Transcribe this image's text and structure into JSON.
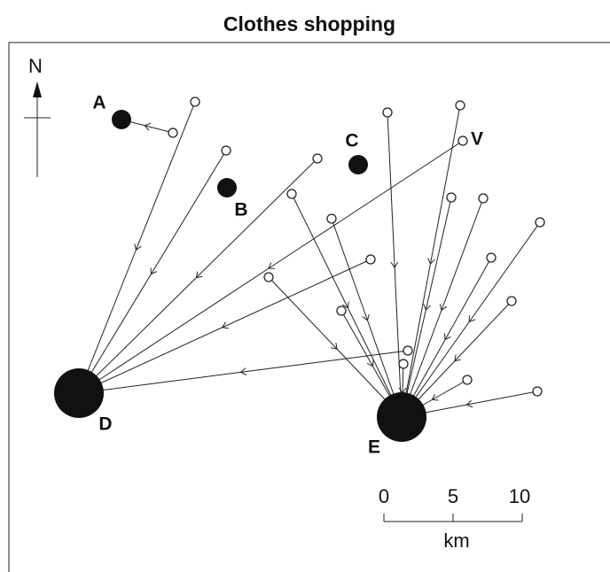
{
  "title": "Clothes shopping",
  "north": "N",
  "shops": [
    {
      "label": "A"
    },
    {
      "label": "B"
    },
    {
      "label": "C"
    },
    {
      "label": "D"
    },
    {
      "label": "E"
    }
  ],
  "origin_label": "V",
  "scale": {
    "ticks": [
      "0",
      "5",
      "10"
    ],
    "unit": "km"
  }
}
